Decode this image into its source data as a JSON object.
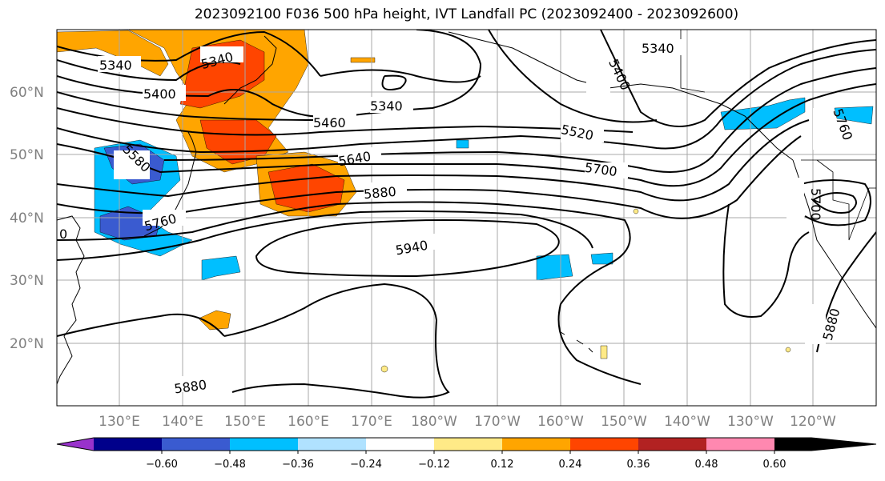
{
  "title": "2023092100 F036 500 hPa height, IVT Landfall PC (2023092400 - 2023092600)",
  "lat_labels": [
    "60°N",
    "50°N",
    "40°N",
    "30°N",
    "20°N"
  ],
  "lon_labels": [
    "130°E",
    "140°E",
    "150°E",
    "160°E",
    "170°E",
    "180°W",
    "170°W",
    "160°W",
    "150°W",
    "140°W",
    "130°W",
    "120°W"
  ],
  "contour_labels": [
    "5340",
    "5340",
    "5340",
    "5340",
    "5400",
    "5400",
    "5460",
    "5520",
    "5580",
    "5640",
    "5700",
    "5700",
    "5760",
    "5760",
    "5880",
    "5880",
    "5880",
    "5940",
    "0"
  ],
  "colorbar": {
    "ticks": [
      "−0.60",
      "−0.48",
      "−0.36",
      "−0.24",
      "−0.12",
      "0.12",
      "0.24",
      "0.36",
      "0.48",
      "0.60"
    ],
    "colors": [
      "#9932cc",
      "#00008b",
      "#3a5bd0",
      "#00bfff",
      "#b0e2ff",
      "#ffffff",
      "#ffea87",
      "#ffa500",
      "#ff4500",
      "#b22222",
      "#ff88b0"
    ]
  },
  "shading_colors": {
    "orange": "#ffa500",
    "red_orange": "#ff4500",
    "deep_sky_blue": "#00bfff",
    "royal_blue": "#3a5bd0",
    "light_yellow": "#ffea87"
  }
}
